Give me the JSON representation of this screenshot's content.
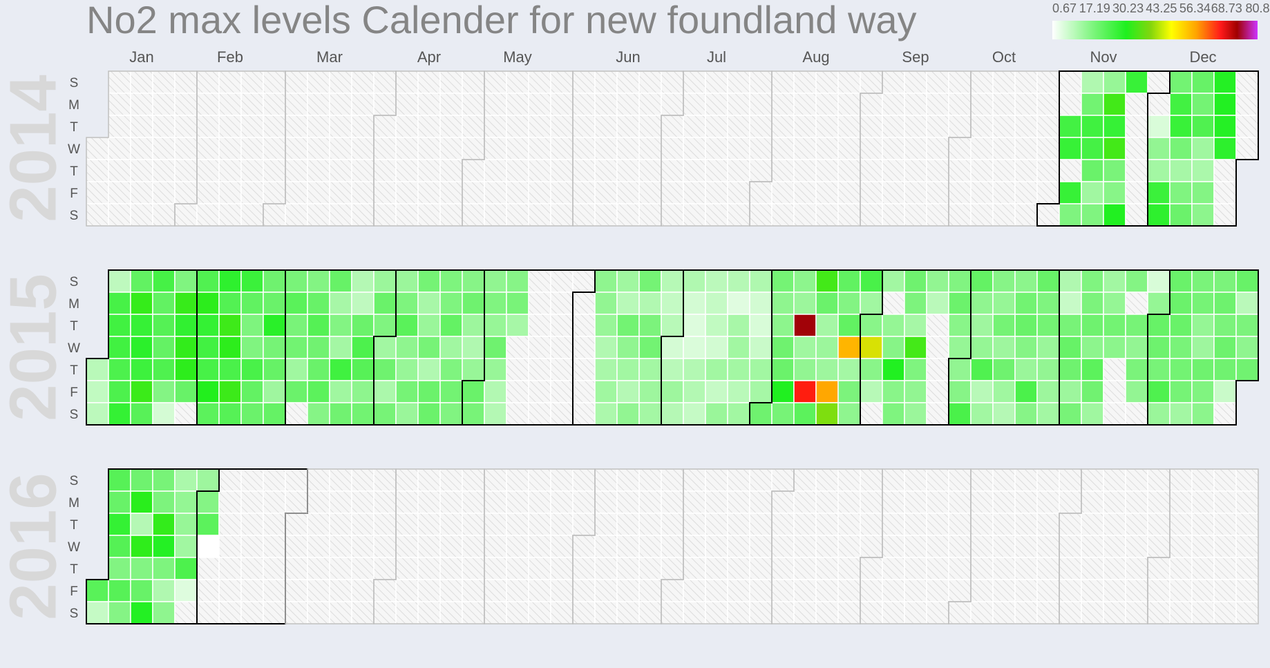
{
  "chart_data": {
    "type": "heatmap",
    "title": "No2 max levels Calender for new foundland way",
    "months": [
      "Jan",
      "Feb",
      "Mar",
      "Apr",
      "May",
      "Jun",
      "Jul",
      "Aug",
      "Sep",
      "Oct",
      "Nov",
      "Dec"
    ],
    "weekdays": [
      "S",
      "M",
      "T",
      "W",
      "T",
      "F",
      "S"
    ],
    "years": [
      2014,
      2015,
      2016
    ],
    "legend": {
      "tick_labels": [
        "0.67",
        "17.19",
        "30.23",
        "43.25",
        "56.34",
        "68.73",
        "80.8"
      ],
      "colors": [
        "#ffffff",
        "#5cf55c",
        "#1ef01e",
        "#7fd60e",
        "#ffff00",
        "#ffa500",
        "#ff2000",
        "#b10000",
        "#c030f0"
      ]
    },
    "color_scale": {
      "min": 0.67,
      "max": 80.8,
      "stops": [
        {
          "v": 0.67,
          "c": "#ffffff"
        },
        {
          "v": 17.19,
          "c": "#6cf26c"
        },
        {
          "v": 30.23,
          "c": "#1ef01e"
        },
        {
          "v": 43.25,
          "c": "#9bd90a"
        },
        {
          "v": 50,
          "c": "#ffe600"
        },
        {
          "v": 56.34,
          "c": "#ffae00"
        },
        {
          "v": 68.73,
          "c": "#ff1010"
        },
        {
          "v": 75,
          "c": "#a00000"
        },
        {
          "v": 80.8,
          "c": "#c030f0"
        }
      ]
    },
    "no_data_fill": "#f3f3f3",
    "series": [
      {
        "year": 2014,
        "values": {
          "2014-11-04": 24.1,
          "2014-11-05": 26.0,
          "2014-11-07": 26.1,
          "2014-11-08": 15.0,
          "2014-11-09": 9.5,
          "2014-11-10": 16.5,
          "2014-11-11": 24.5,
          "2014-11-12": 23.7,
          "2014-11-13": 17.6,
          "2014-11-14": 11.2,
          "2014-11-15": 14.9,
          "2014-11-16": 12.4,
          "2014-11-17": 34.0,
          "2014-11-18": 26.2,
          "2014-11-19": 34.1,
          "2014-11-20": 15.6,
          "2014-11-21": 14.0,
          "2014-11-22": 29.7,
          "2014-11-23": 25.9,
          "2014-12-02": 4.9,
          "2014-12-03": 12.8,
          "2014-12-04": 11.0,
          "2014-12-05": 25.3,
          "2014-12-06": 27.5,
          "2014-12-07": 16.4,
          "2014-12-08": 24.2,
          "2014-12-09": 25.7,
          "2014-12-10": 15.9,
          "2014-12-11": 10.6,
          "2014-12-12": 14.9,
          "2014-12-13": 17.4,
          "2014-12-14": 18.0,
          "2014-12-15": 16.3,
          "2014-12-16": 21.9,
          "2014-12-17": 11.3,
          "2014-12-18": 10.1,
          "2014-12-19": 14.5,
          "2014-12-20": 13.5,
          "2014-12-21": 29.3,
          "2014-12-22": 29.5,
          "2014-12-23": 29.0,
          "2014-12-24": 27.8
        }
      },
      {
        "year": 2015,
        "values": {
          "2015-01-01": 8.5,
          "2015-01-02": 7.6,
          "2015-01-03": 8.2,
          "2015-01-04": 8.0,
          "2015-01-05": 23.4,
          "2015-01-06": 24.3,
          "2015-01-07": 24.3,
          "2015-01-08": 22.4,
          "2015-01-09": 22.3,
          "2015-01-10": 26.6,
          "2015-01-11": 18.8,
          "2015-01-12": 32.6,
          "2015-01-13": 26.2,
          "2015-01-14": 28.0,
          "2015-01-15": 25.1,
          "2015-01-16": 33.2,
          "2015-01-17": 20.5,
          "2015-01-18": 23.5,
          "2015-01-19": 18.9,
          "2015-01-20": 21.0,
          "2015-01-21": 18.5,
          "2015-01-22": 22.0,
          "2015-01-23": 14.5,
          "2015-01-24": 5.5,
          "2015-01-25": 14.9,
          "2015-01-26": 32.8,
          "2015-01-27": 27.1,
          "2015-01-28": 32.3,
          "2015-01-29": 31.8,
          "2015-01-30": 17.8,
          "2015-02-01": 21.7,
          "2015-02-02": 31.7,
          "2015-02-03": 26.5,
          "2015-02-04": 24.2,
          "2015-02-05": 23.4,
          "2015-02-06": 30.6,
          "2015-02-07": 19.8,
          "2015-02-08": 27.5,
          "2015-02-09": 21.4,
          "2015-02-10": 33.6,
          "2015-02-11": 31.8,
          "2015-02-12": 22.9,
          "2015-02-13": 33.4,
          "2015-02-14": 20.9,
          "2015-02-15": 25.4,
          "2015-02-16": 19.1,
          "2015-02-17": 15.2,
          "2015-02-18": 14.9,
          "2015-02-19": 23.1,
          "2015-02-20": 18.7,
          "2015-02-21": 17.4,
          "2015-02-22": 16.9,
          "2015-02-23": 17.6,
          "2015-02-24": 28.4,
          "2015-02-25": 16.1,
          "2015-02-26": 18.2,
          "2015-02-27": 11.5,
          "2015-02-28": 18.4,
          "2015-03-01": 15.7,
          "2015-03-02": 20.2,
          "2015-03-03": 15.7,
          "2015-03-04": 16.5,
          "2015-03-05": 11.4,
          "2015-03-06": 17.3,
          "2015-03-08": 14.6,
          "2015-03-09": 17.8,
          "2015-03-10": 21.0,
          "2015-03-11": 16.6,
          "2015-03-12": 17.6,
          "2015-03-13": 19.9,
          "2015-03-14": 14.3,
          "2015-03-15": 18.0,
          "2015-03-16": 10.6,
          "2015-03-17": 14.6,
          "2015-03-18": 10.9,
          "2015-03-19": 24.5,
          "2015-03-20": 11.3,
          "2015-03-21": 16.6,
          "2015-03-22": 9.1,
          "2015-03-23": 7.9,
          "2015-03-24": 17.3,
          "2015-03-25": 22.3,
          "2015-03-26": 20.7,
          "2015-03-27": 13.4,
          "2015-03-28": 16.5,
          "2015-03-29": 11.9,
          "2015-03-30": 17.5,
          "2015-03-31": 14.9,
          "2015-04-01": 11.1,
          "2015-04-02": 16.8,
          "2015-04-03": 10.1,
          "2015-04-04": 15.9,
          "2015-04-05": 11.9,
          "2015-04-06": 15.2,
          "2015-04-07": 20.2,
          "2015-04-08": 13.3,
          "2015-04-09": 12.3,
          "2015-04-10": 16.1,
          "2015-04-11": 12.0,
          "2015-04-12": 16.2,
          "2015-04-13": 10.5,
          "2015-04-14": 12.0,
          "2015-04-15": 15.9,
          "2015-04-16": 9.4,
          "2015-04-17": 17.3,
          "2015-04-18": 17.4,
          "2015-04-19": 15.2,
          "2015-04-20": 15.1,
          "2015-04-21": 18.6,
          "2015-04-22": 11.2,
          "2015-04-23": 15.0,
          "2015-04-24": 16.4,
          "2015-04-25": 14.8,
          "2015-04-26": 14.1,
          "2015-04-27": 16.8,
          "2015-04-28": 11.7,
          "2015-04-29": 9.5,
          "2015-04-30": 12.3,
          "2015-05-01": 17.6,
          "2015-05-02": 15.8,
          "2015-05-03": 13.0,
          "2015-05-04": 14.9,
          "2015-05-05": 12.4,
          "2015-05-06": 16.8,
          "2015-05-07": 12.2,
          "2015-05-08": 9.3,
          "2015-05-09": 9.1,
          "2015-05-10": 14.1,
          "2015-05-11": 15.7,
          "2015-05-12": 10.6,
          "2015-06-07": 13.3,
          "2015-06-08": 12.9,
          "2015-06-09": 12.2,
          "2015-06-10": 9.4,
          "2015-06-11": 10.3,
          "2015-06-12": 11.4,
          "2015-06-13": 10.0,
          "2015-06-14": 11.3,
          "2015-06-15": 8.6,
          "2015-06-16": 16.4,
          "2015-06-17": 13.0,
          "2015-06-18": 11.1,
          "2015-06-19": 9.0,
          "2015-06-20": 12.9,
          "2015-06-21": 16.2,
          "2015-06-22": 9.4,
          "2015-06-23": 15.4,
          "2015-06-24": 16.4,
          "2015-06-25": 11.0,
          "2015-06-26": 11.6,
          "2015-06-27": 10.9,
          "2015-06-28": 8.9,
          "2015-06-29": 7.3,
          "2015-06-30": 8.7,
          "2015-07-01": 5.5,
          "2015-07-02": 8.5,
          "2015-07-03": 11.6,
          "2015-07-04": 9.0,
          "2015-07-05": 9.6,
          "2015-07-06": 5.6,
          "2015-07-07": 4.5,
          "2015-07-08": 4.8,
          "2015-07-09": 9.2,
          "2015-07-10": 9.2,
          "2015-07-11": 7.2,
          "2015-07-12": 8.3,
          "2015-07-13": 7.2,
          "2015-07-14": 7.6,
          "2015-07-15": 5.7,
          "2015-07-16": 11.1,
          "2015-07-17": 7.1,
          "2015-07-18": 12.0,
          "2015-07-19": 9.0,
          "2015-07-20": 4.1,
          "2015-07-21": 10.5,
          "2015-07-22": 11.1,
          "2015-07-23": 11.0,
          "2015-07-24": 8.5,
          "2015-07-25": 11.1,
          "2015-07-26": 9.7,
          "2015-07-27": 5.7,
          "2015-07-28": 5.0,
          "2015-07-29": 6.7,
          "2015-07-30": 11.1,
          "2015-07-31": 10.7,
          "2015-08-01": 16.9,
          "2015-08-02": 16.2,
          "2015-08-03": 13.3,
          "2015-08-04": 13.5,
          "2015-08-05": 16.8,
          "2015-08-06": 17.4,
          "2015-08-07": 29.9,
          "2015-08-08": 16.0,
          "2015-08-09": 13.5,
          "2015-08-10": 11.8,
          "2015-08-11": 75.2,
          "2015-08-12": 11.3,
          "2015-08-13": 12.9,
          "2015-08-14": 67.7,
          "2015-08-15": 19.9,
          "2015-08-16": 34.1,
          "2015-08-17": 17.4,
          "2015-08-18": 10.8,
          "2015-08-19": 11.8,
          "2015-08-20": 11.6,
          "2015-08-21": 56.9,
          "2015-08-22": 40.2,
          "2015-08-23": 19.1,
          "2015-08-24": 14.6,
          "2015-08-25": 18.9,
          "2015-08-26": 55.6,
          "2015-08-27": 10.9,
          "2015-08-28": 15.4,
          "2015-08-29": 13.3,
          "2015-08-30": 23.1,
          "2015-08-31": 11.2,
          "2015-09-01": 13.9,
          "2015-09-02": 47.4,
          "2015-09-03": 13.9,
          "2015-09-04": 8.8,
          "2015-09-06": 11.1,
          "2015-09-08": 12.6,
          "2015-09-09": 14.1,
          "2015-09-10": 29.7,
          "2015-09-11": 13.9,
          "2015-09-12": 15.0,
          "2015-09-13": 16.9,
          "2015-09-14": 15.3,
          "2015-09-15": 10.7,
          "2015-09-16": 34.2,
          "2015-09-17": 15.1,
          "2015-09-18": 12.9,
          "2015-09-19": 11.9,
          "2015-09-20": 12.9,
          "2015-09-21": 8.4,
          "2015-09-27": 14.8,
          "2015-09-28": 17.2,
          "2015-09-29": 13.9,
          "2015-09-30": 12.5,
          "2015-10-01": 12.9,
          "2015-10-02": 14.2,
          "2015-10-03": 22.8,
          "2015-10-04": 18.5,
          "2015-10-05": 13.1,
          "2015-10-06": 11.5,
          "2015-10-07": 12.6,
          "2015-10-08": 21.8,
          "2015-10-09": 8.7,
          "2015-10-10": 11.1,
          "2015-10-11": 14.1,
          "2015-10-12": 12.5,
          "2015-10-13": 16.2,
          "2015-10-14": 11.6,
          "2015-10-15": 16.9,
          "2015-10-16": 11.3,
          "2015-10-17": 9.0,
          "2015-10-18": 13.6,
          "2015-10-19": 16.5,
          "2015-10-20": 17.7,
          "2015-10-21": 14.4,
          "2015-10-22": 12.0,
          "2015-10-23": 22.7,
          "2015-10-24": 14.1,
          "2015-10-25": 17.8,
          "2015-10-26": 15.1,
          "2015-10-27": 16.3,
          "2015-10-28": 12.0,
          "2015-10-29": 12.8,
          "2015-10-30": 11.7,
          "2015-10-31": 11.0,
          "2015-11-01": 9.6,
          "2015-11-02": 7.0,
          "2015-11-03": 15.8,
          "2015-11-04": 18.0,
          "2015-11-05": 16.9,
          "2015-11-06": 11.7,
          "2015-11-07": 15.8,
          "2015-11-08": 14.9,
          "2015-11-09": 15.4,
          "2015-11-10": 16.8,
          "2015-11-11": 13.5,
          "2015-11-12": 19.9,
          "2015-11-13": 16.6,
          "2015-11-14": 11.4,
          "2015-11-15": 11.1,
          "2015-11-16": 12.6,
          "2015-11-17": 16.4,
          "2015-11-18": 13.6,
          "2015-11-22": 14.5,
          "2015-11-24": 15.9,
          "2015-11-25": 12.8,
          "2015-11-26": 15.5,
          "2015-11-27": 12.8,
          "2015-11-29": 5.1,
          "2015-11-30": 12.6,
          "2015-12-01": 18.0,
          "2015-12-02": 17.0,
          "2015-12-03": 15.8,
          "2015-12-04": 22.1,
          "2015-12-05": 12.0,
          "2015-12-06": 17.6,
          "2015-12-07": 17.3,
          "2015-12-08": 17.7,
          "2015-12-09": 15.7,
          "2015-12-10": 16.4,
          "2015-12-11": 16.1,
          "2015-12-12": 11.0,
          "2015-12-13": 15.6,
          "2015-12-14": 16.1,
          "2015-12-15": 12.6,
          "2015-12-16": 11.6,
          "2015-12-17": 16.9,
          "2015-12-18": 14.9,
          "2015-12-19": 13.6,
          "2015-12-20": 15.5,
          "2015-12-21": 17.0,
          "2015-12-22": 15.5,
          "2015-12-23": 17.1,
          "2015-12-24": 16.7,
          "2015-12-25": 6.7,
          "2015-12-27": 17.8,
          "2015-12-28": 8.4,
          "2015-12-29": 15.4,
          "2015-12-30": 13.3,
          "2015-12-31": 16.6
        }
      },
      {
        "year": 2016,
        "values": {
          "2016-01-01": 20.3,
          "2016-01-02": 7.2,
          "2016-01-03": 20.7,
          "2016-01-04": 17.9,
          "2016-01-05": 26.6,
          "2016-01-06": 21.1,
          "2016-01-07": 14.7,
          "2016-01-08": 20.7,
          "2016-01-09": 14.4,
          "2016-01-10": 16.8,
          "2016-01-11": 31.4,
          "2016-01-12": 9.0,
          "2016-01-13": 32.0,
          "2016-01-14": 14.6,
          "2016-01-15": 17.9,
          "2016-01-16": 29.4,
          "2016-01-17": 15.8,
          "2016-01-18": 15.3,
          "2016-01-19": 32.4,
          "2016-01-20": 29.2,
          "2016-01-21": 15.2,
          "2016-01-22": 9.6,
          "2016-01-23": 13.3,
          "2016-01-24": 10.1,
          "2016-01-25": 12.7,
          "2016-01-26": 12.4,
          "2016-01-27": 11.2,
          "2016-01-28": 22.3,
          "2016-01-29": 4.4,
          "2016-01-31": 11.6,
          "2016-02-01": 14.4,
          "2016-02-02": 19.9,
          "2016-02-03": 0.67
        }
      }
    ]
  }
}
